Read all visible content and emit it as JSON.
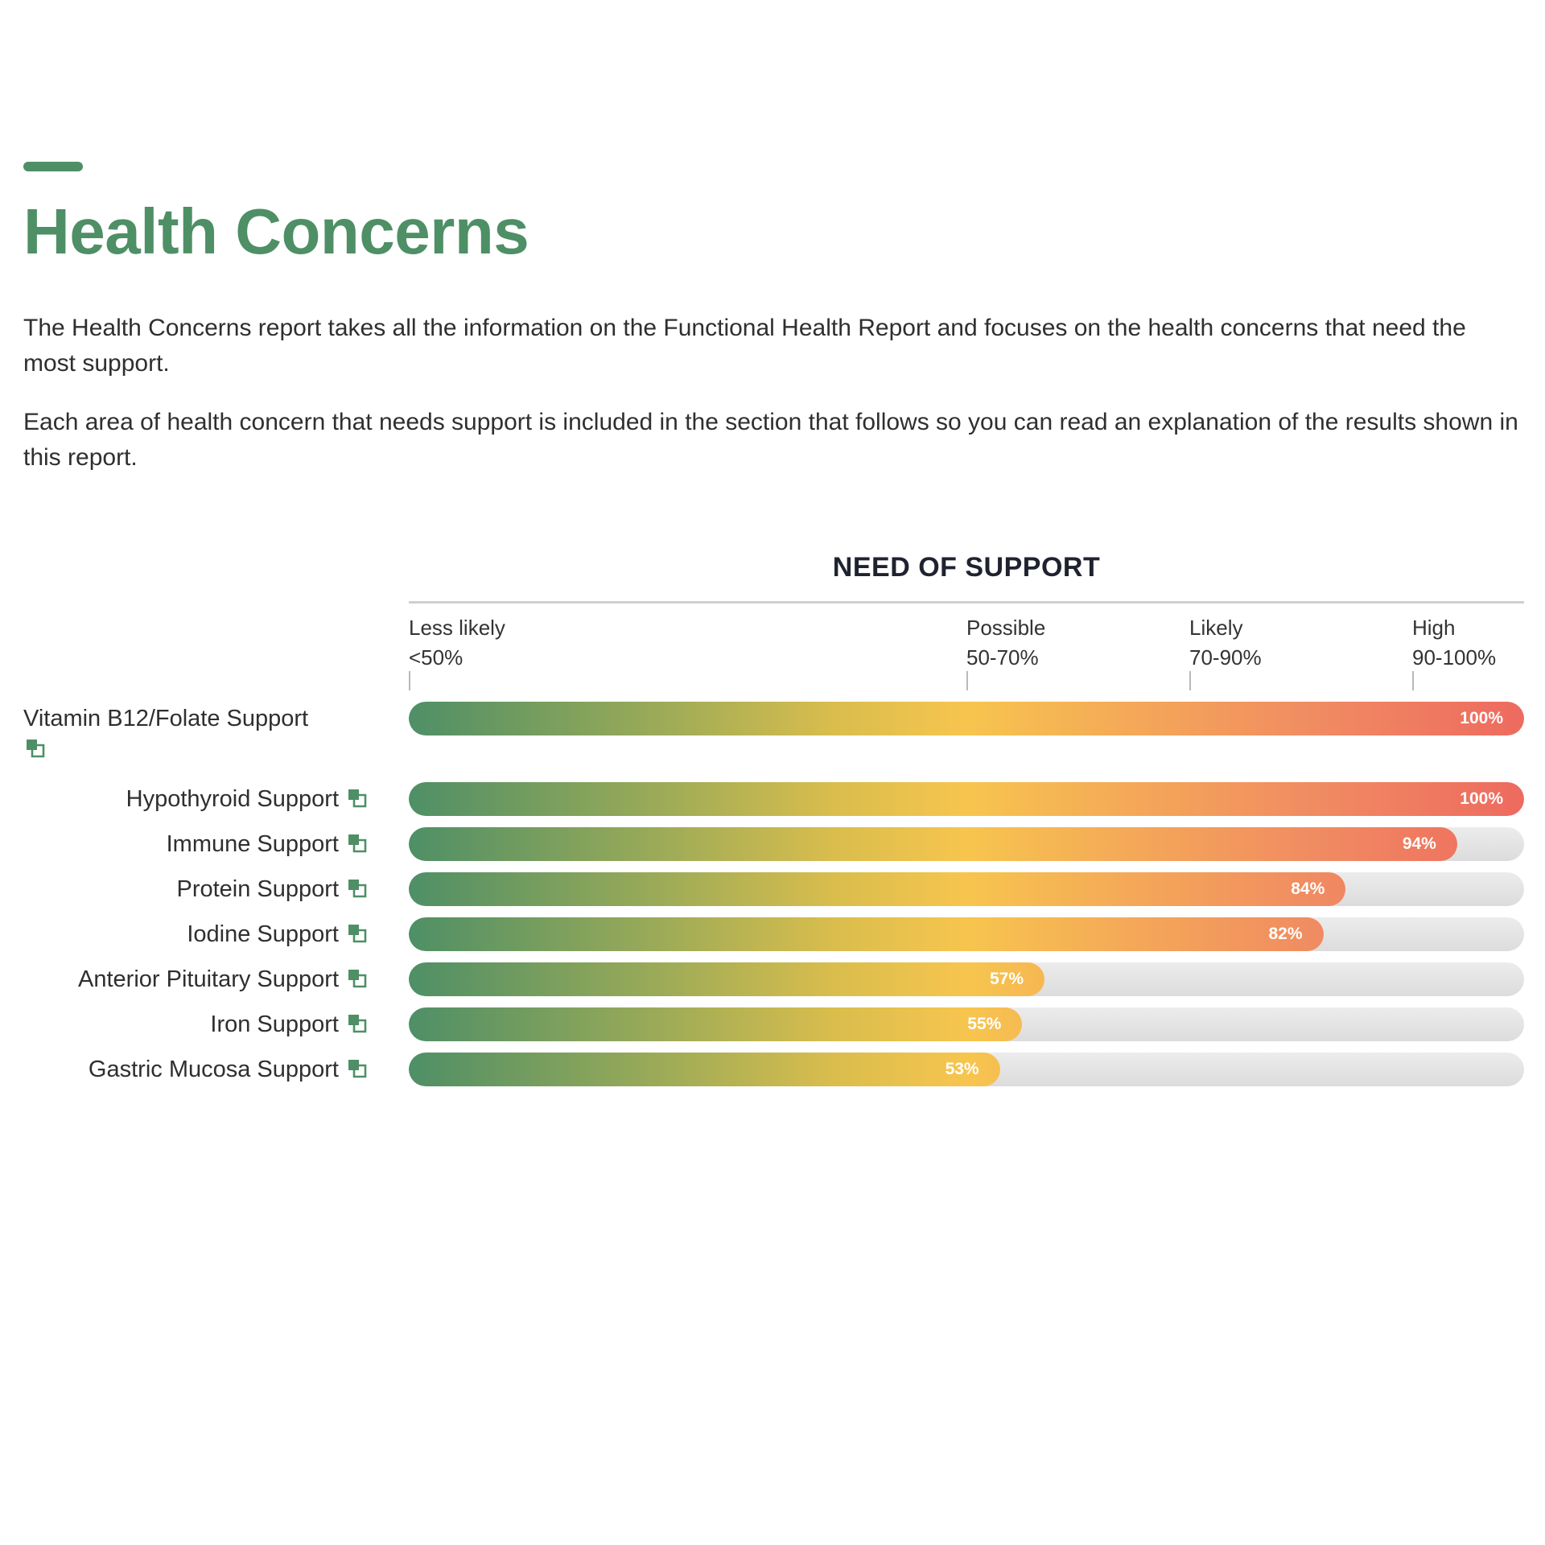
{
  "header": {
    "title": "Health Concerns"
  },
  "intro": {
    "paragraph_1": "The Health Concerns report takes all the information on the Functional Health Report and focuses on the health concerns that need the most support.",
    "paragraph_2": "Each area of health concern that needs support is included in the section that follows so you can read an explanation of the results shown in this report."
  },
  "colors": {
    "accent": "#4e8f66",
    "gradient_start": "#4e8f66",
    "gradient_mid": "#f7c54e",
    "gradient_end": "#ee6a5f",
    "track": "#e2e2e2"
  },
  "chart_data": {
    "type": "bar",
    "orientation": "horizontal",
    "title": "NEED OF SUPPORT",
    "xlim": [
      0,
      100
    ],
    "bands": [
      {
        "name": "Less likely",
        "range": "<50%",
        "start": 0
      },
      {
        "name": "Possible",
        "range": "50-70%",
        "start": 50
      },
      {
        "name": "Likely",
        "range": "70-90%",
        "start": 70
      },
      {
        "name": "High",
        "range": "90-100%",
        "start": 90
      }
    ],
    "categories": [
      "Vitamin B12/Folate Support",
      "Hypothyroid Support",
      "Immune Support",
      "Protein Support",
      "Iodine Support",
      "Anterior Pituitary Support",
      "Iron Support",
      "Gastric Mucosa Support"
    ],
    "values": [
      100,
      100,
      94,
      84,
      82,
      57,
      55,
      53
    ],
    "value_labels": [
      "100%",
      "100%",
      "94%",
      "84%",
      "82%",
      "57%",
      "55%",
      "53%"
    ],
    "category_icon": "document-link-icon"
  }
}
